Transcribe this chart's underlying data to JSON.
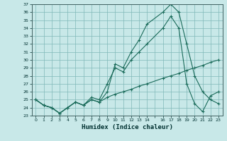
{
  "xlabel": "Humidex (Indice chaleur)",
  "bg_color": "#c8e8e8",
  "grid_color": "#80b8b8",
  "line_color": "#1a6b5a",
  "x_values": [
    0,
    1,
    2,
    3,
    4,
    5,
    6,
    7,
    8,
    9,
    10,
    11,
    12,
    13,
    14,
    16,
    17,
    18,
    19,
    20,
    21,
    22,
    23
  ],
  "line1_y": [
    25.0,
    24.3,
    24.0,
    23.3,
    24.0,
    24.7,
    24.3,
    25.0,
    24.7,
    25.3,
    25.7,
    26.0,
    26.3,
    26.7,
    27.0,
    27.7,
    28.0,
    28.3,
    28.7,
    29.0,
    29.3,
    29.7,
    30.0
  ],
  "line2_y": [
    25.0,
    24.3,
    24.0,
    23.3,
    24.0,
    24.7,
    24.3,
    25.3,
    25.0,
    27.0,
    29.0,
    28.5,
    30.0,
    31.0,
    32.0,
    34.0,
    35.5,
    34.0,
    27.0,
    24.5,
    23.5,
    25.5,
    26.0
  ],
  "line3_y": [
    25.0,
    24.3,
    24.0,
    23.3,
    24.0,
    24.7,
    24.3,
    25.0,
    24.7,
    26.0,
    29.5,
    29.0,
    31.0,
    32.5,
    34.5,
    36.0,
    37.0,
    36.0,
    32.0,
    28.0,
    26.0,
    25.0,
    24.5
  ],
  "ylim": [
    23,
    37
  ],
  "xlim": [
    -0.5,
    23.5
  ],
  "yticks": [
    23,
    24,
    25,
    26,
    27,
    28,
    29,
    30,
    31,
    32,
    33,
    34,
    35,
    36,
    37
  ],
  "xtick_labels": [
    "0",
    "1",
    "2",
    "3",
    "4",
    "5",
    "6",
    "7",
    "8",
    "9",
    "10",
    "11",
    "12",
    "13",
    "14",
    "",
    "16",
    "17",
    "18",
    "19",
    "20",
    "21",
    "22",
    "23"
  ]
}
